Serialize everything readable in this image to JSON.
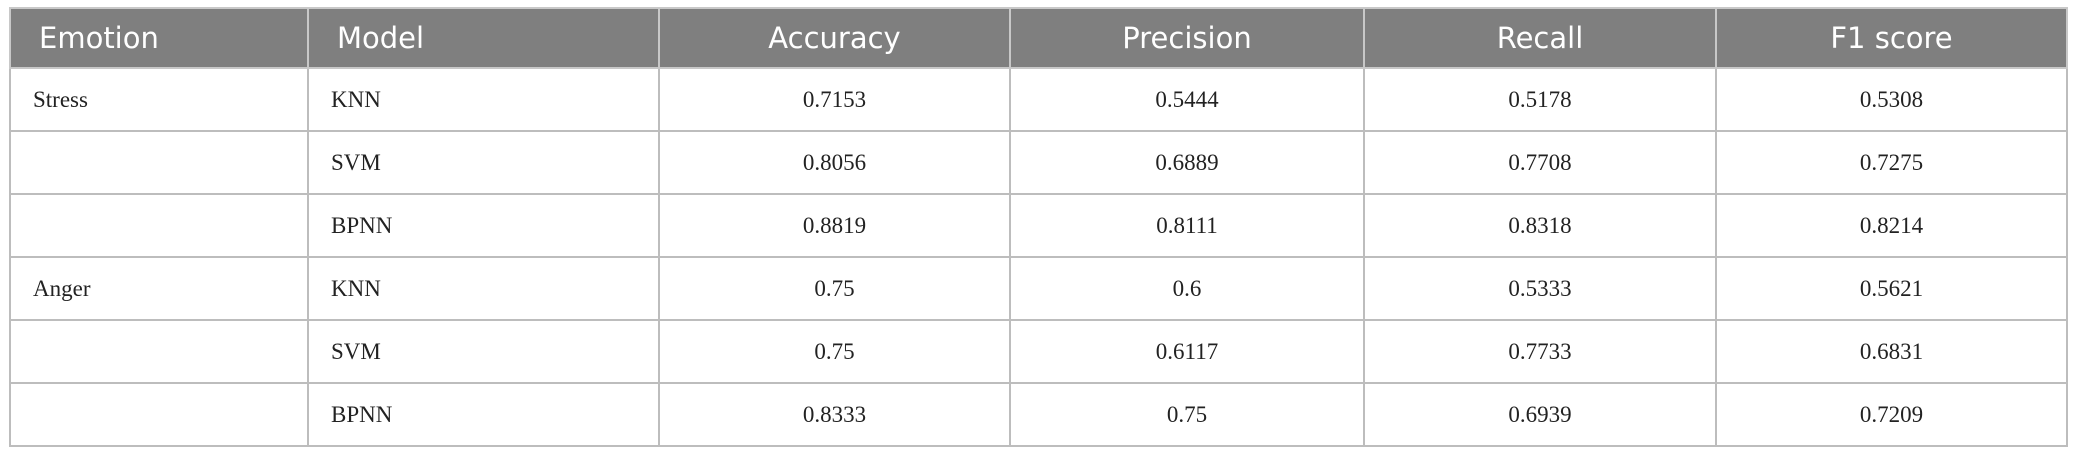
{
  "table": {
    "columns": [
      "Emotion",
      "Model",
      "Accuracy",
      "Precision",
      "Recall",
      "F1 score"
    ],
    "groups": [
      {
        "emotion": "Stress",
        "rows": [
          [
            "KNN",
            0.7153,
            0.5444,
            0.5178,
            0.5308
          ],
          [
            "SVM",
            0.8056,
            0.6889,
            0.7708,
            0.7275
          ],
          [
            "BPNN",
            0.8819,
            0.8111,
            0.8318,
            0.8214
          ]
        ]
      },
      {
        "emotion": "Anger",
        "rows": [
          [
            "KNN",
            0.75,
            0.6,
            0.5333,
            0.5621
          ],
          [
            "SVM",
            0.75,
            0.6117,
            0.7733,
            0.6831
          ],
          [
            "BPNN",
            0.8333,
            0.75,
            0.6939,
            0.7209
          ]
        ]
      }
    ]
  }
}
